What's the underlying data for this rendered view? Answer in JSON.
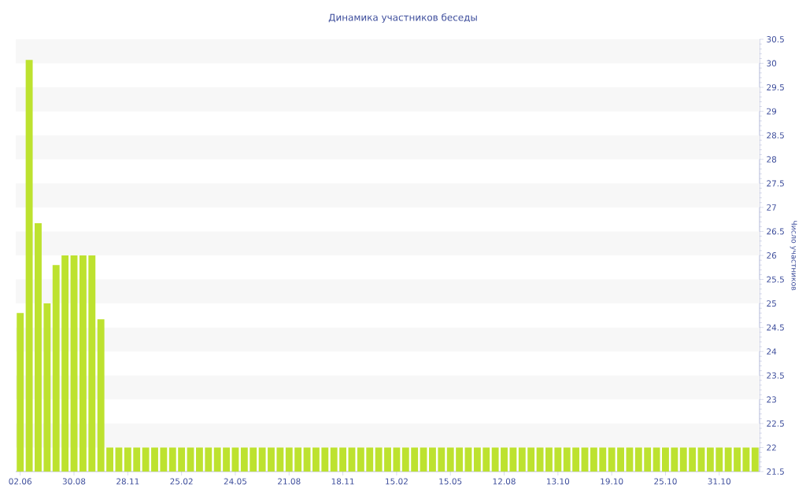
{
  "chart_data": {
    "type": "bar",
    "title": "Динамика участников беседы",
    "ylabel": "Число участников",
    "categories": [
      "02.06",
      null,
      null,
      null,
      null,
      null,
      "30.08",
      null,
      null,
      null,
      null,
      null,
      "28.11",
      null,
      null,
      null,
      null,
      null,
      "25.02",
      null,
      null,
      null,
      null,
      null,
      "24.05",
      null,
      null,
      null,
      null,
      null,
      "21.08",
      null,
      null,
      null,
      null,
      null,
      "18.11",
      null,
      null,
      null,
      null,
      null,
      "15.02",
      null,
      null,
      null,
      null,
      null,
      "15.05",
      null,
      null,
      null,
      null,
      null,
      "12.08",
      null,
      null,
      null,
      null,
      null,
      "13.10",
      null,
      null,
      null,
      null,
      null,
      "19.10",
      null,
      null,
      null,
      null,
      null,
      "25.10",
      null,
      null,
      null,
      null,
      null,
      "31.10",
      null,
      null,
      null,
      null
    ],
    "values": [
      24.8,
      30.07,
      26.67,
      25,
      25.8,
      26,
      26,
      26,
      26,
      24.67,
      22,
      22,
      22,
      22,
      22,
      22,
      22,
      22,
      22,
      22,
      22,
      22,
      22,
      22,
      22,
      22,
      22,
      22,
      22,
      22,
      22,
      22,
      22,
      22,
      22,
      22,
      22,
      22,
      22,
      22,
      22,
      22,
      22,
      22,
      22,
      22,
      22,
      22,
      22,
      22,
      22,
      22,
      22,
      22,
      22,
      22,
      22,
      22,
      22,
      22,
      22,
      22,
      22,
      22,
      22,
      22,
      22,
      22,
      22,
      22,
      22,
      22,
      22,
      22,
      22,
      22,
      22,
      22,
      22,
      22,
      22,
      22,
      22
    ],
    "color": "#bde22f",
    "ylim": [
      21.5,
      30.5
    ],
    "yticks": [
      21.5,
      22,
      22.5,
      23,
      23.5,
      24,
      24.5,
      25,
      25.5,
      26,
      26.5,
      27,
      27.5,
      28,
      28.5,
      29,
      29.5,
      30,
      30.5
    ],
    "bands": [
      {
        "axis": "y",
        "from": 22,
        "to": 22.5,
        "color": "#f7f7f7"
      },
      {
        "axis": "y",
        "from": 23,
        "to": 23.5,
        "color": "#f7f7f7"
      },
      {
        "axis": "y",
        "from": 24,
        "to": 24.5,
        "color": "#f7f7f7"
      },
      {
        "axis": "y",
        "from": 25,
        "to": 25.5,
        "color": "#f7f7f7"
      },
      {
        "axis": "y",
        "from": 26,
        "to": 26.5,
        "color": "#f7f7f7"
      },
      {
        "axis": "y",
        "from": 27,
        "to": 27.5,
        "color": "#f7f7f7"
      },
      {
        "axis": "y",
        "from": 28,
        "to": 28.5,
        "color": "#f7f7f7"
      },
      {
        "axis": "y",
        "from": 29,
        "to": 29.5,
        "color": "#f7f7f7"
      },
      {
        "axis": "y",
        "from": 30,
        "to": 30.5,
        "color": "#f7f7f7"
      }
    ]
  }
}
